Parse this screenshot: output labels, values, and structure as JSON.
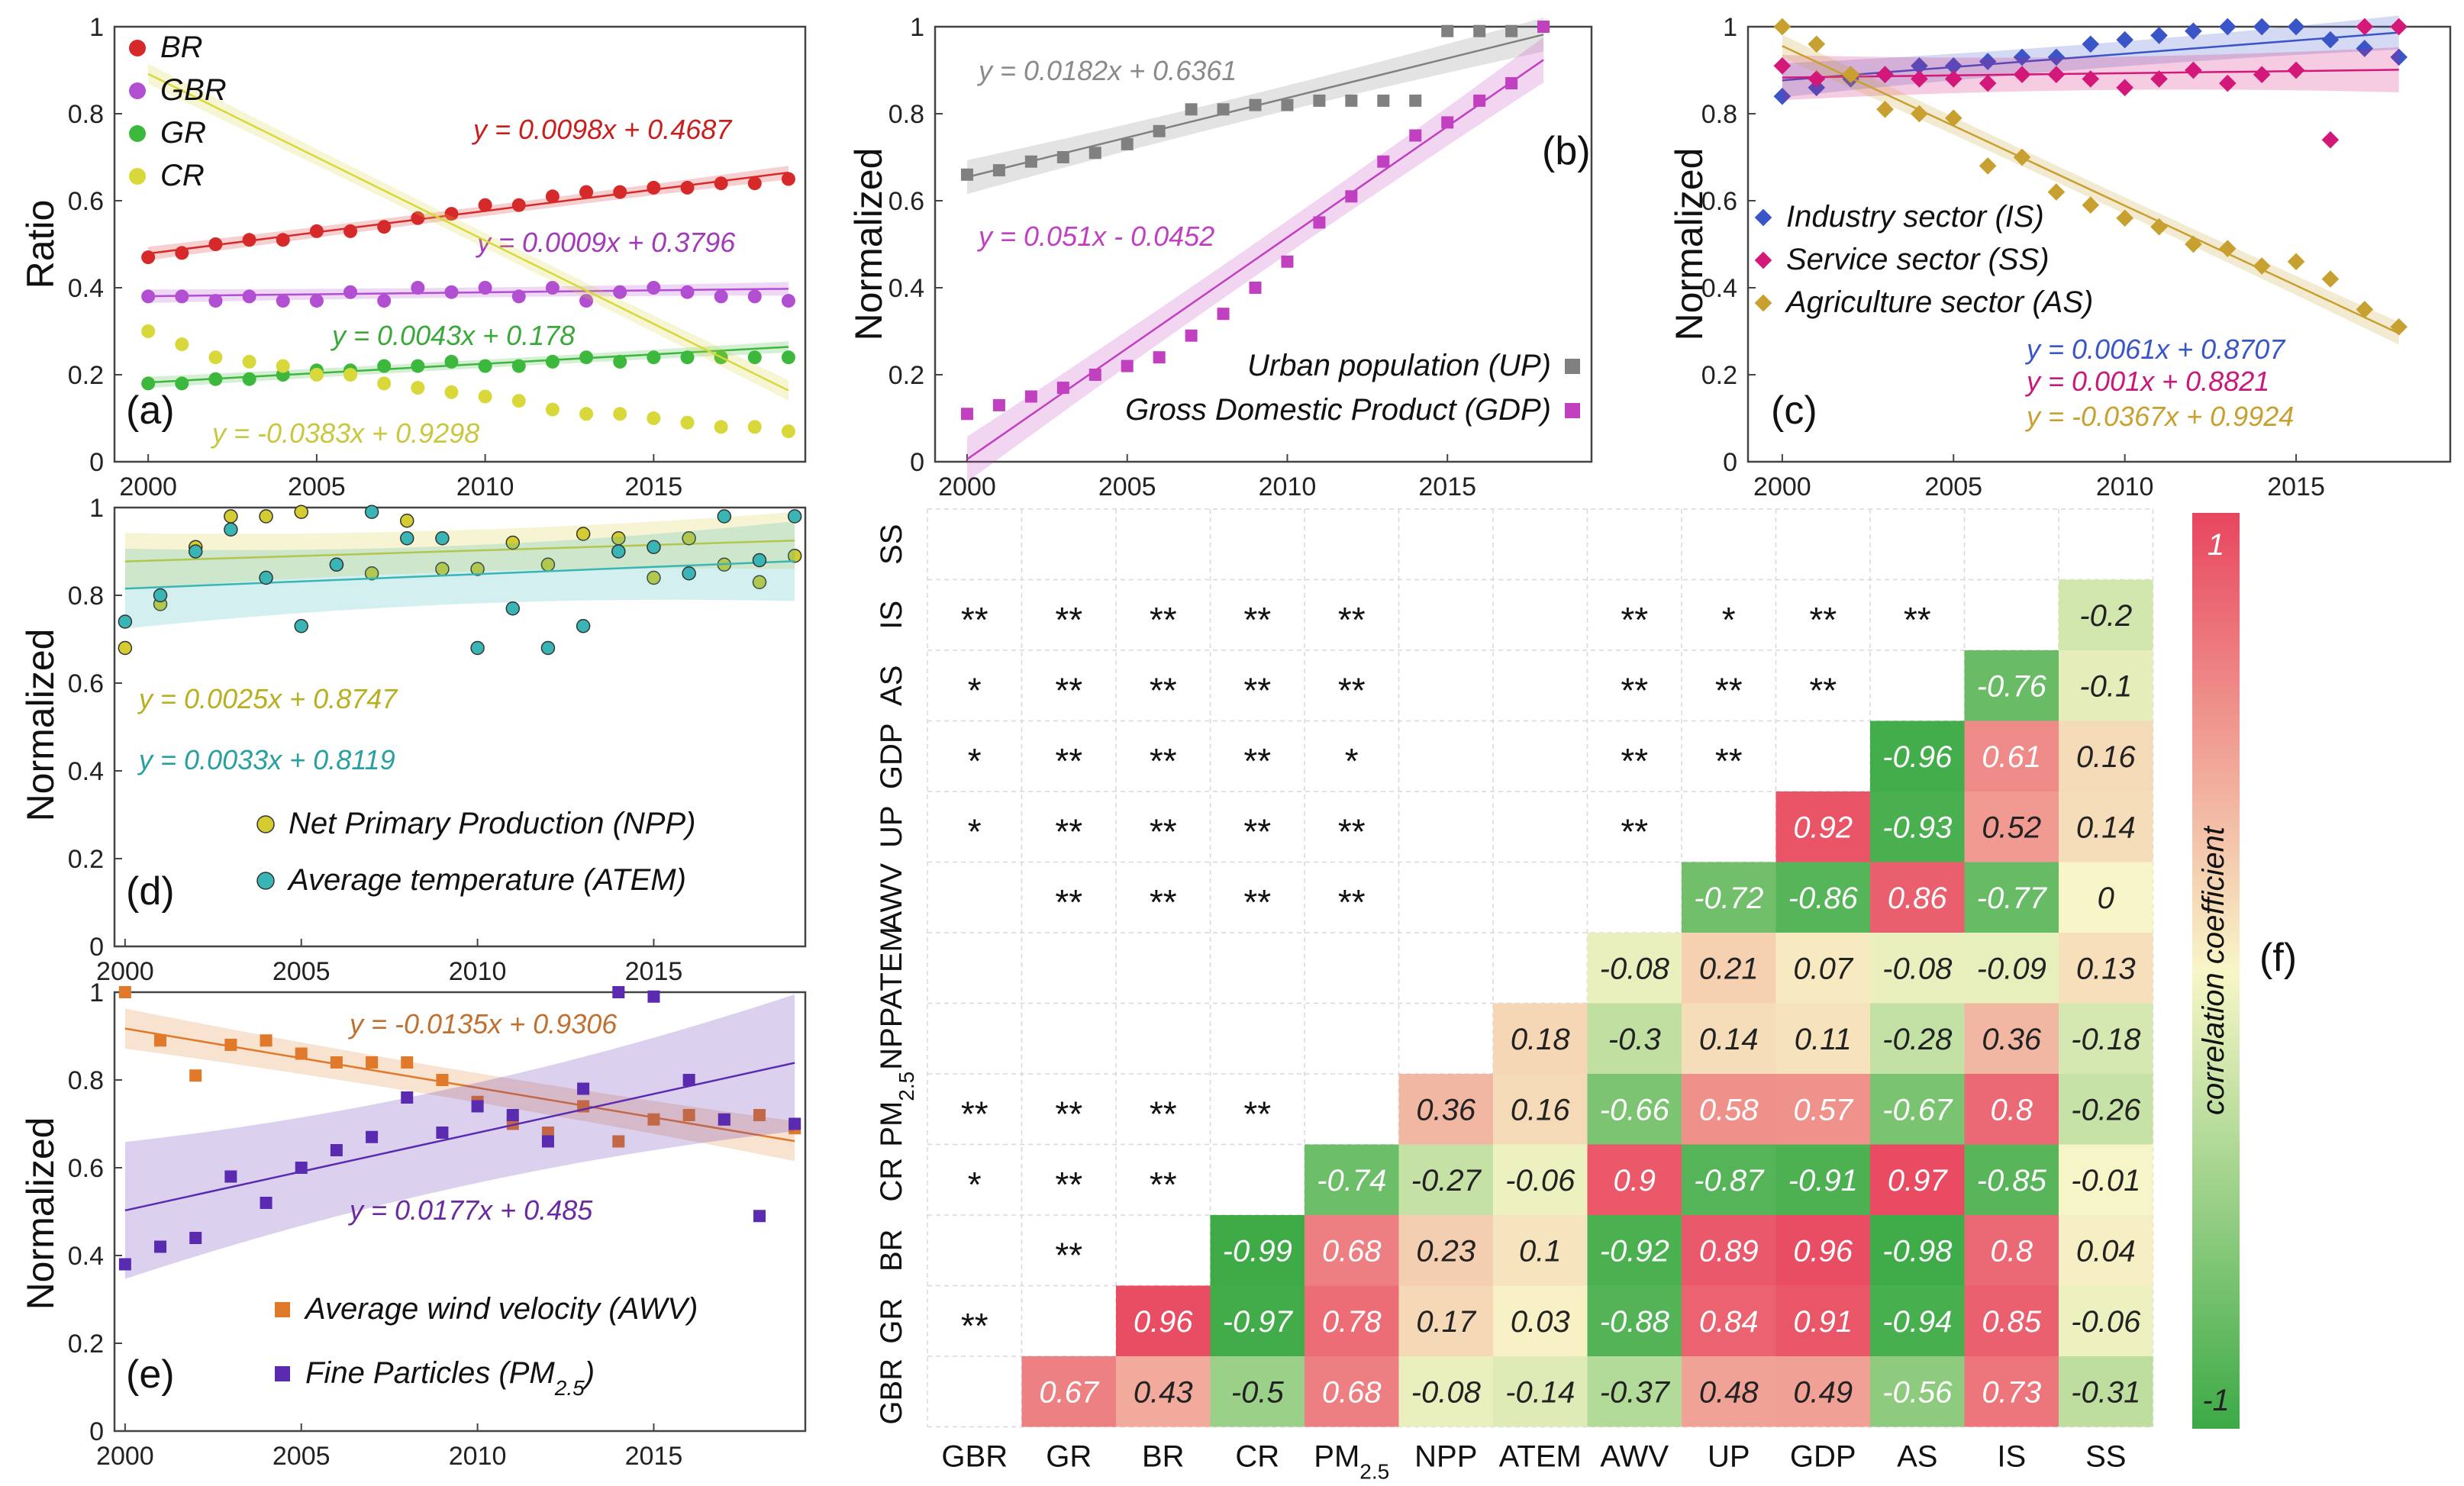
{
  "chart_data": [
    {
      "id": "a",
      "panel_label": "(a)",
      "type": "scatter",
      "title": "",
      "xlabel": "",
      "ylabel": "Ratio",
      "xlim": [
        1999,
        2019.5
      ],
      "ylim": [
        0,
        1
      ],
      "xticks": [
        "2000",
        "2005",
        "2010",
        "2015"
      ],
      "yticks": [
        "0",
        "0.2",
        "0.4",
        "0.6",
        "0.8",
        "1"
      ],
      "legend_position": "top-left",
      "x": [
        2000,
        2001,
        2002,
        2003,
        2004,
        2005,
        2006,
        2007,
        2008,
        2009,
        2010,
        2011,
        2012,
        2013,
        2014,
        2015,
        2016,
        2017,
        2018,
        2019
      ],
      "series": [
        {
          "name": "BR",
          "color": "#d62a2a",
          "values": [
            0.47,
            0.48,
            0.5,
            0.51,
            0.51,
            0.53,
            0.53,
            0.54,
            0.56,
            0.57,
            0.59,
            0.59,
            0.61,
            0.62,
            0.62,
            0.63,
            0.63,
            0.64,
            0.64,
            0.65
          ],
          "fit": {
            "slope": 0.0098,
            "intercept": 0.4687,
            "label": "y = 0.0098x + 0.4687"
          }
        },
        {
          "name": "GBR",
          "color": "#b14ed1",
          "values": [
            0.38,
            0.38,
            0.37,
            0.38,
            0.37,
            0.37,
            0.39,
            0.37,
            0.4,
            0.39,
            0.4,
            0.38,
            0.4,
            0.37,
            0.39,
            0.4,
            0.39,
            0.38,
            0.38,
            0.37
          ],
          "fit": {
            "slope": 0.0009,
            "intercept": 0.3796,
            "label": "y = 0.0009x + 0.3796"
          }
        },
        {
          "name": "GR",
          "color": "#3cb83c",
          "values": [
            0.18,
            0.18,
            0.19,
            0.19,
            0.2,
            0.21,
            0.21,
            0.22,
            0.22,
            0.23,
            0.22,
            0.22,
            0.23,
            0.24,
            0.23,
            0.24,
            0.24,
            0.24,
            0.24,
            0.24
          ],
          "fit": {
            "slope": 0.0043,
            "intercept": 0.178,
            "label": "y = 0.0043x + 0.178"
          }
        },
        {
          "name": "CR",
          "color": "#d8d83a",
          "values": [
            0.3,
            0.27,
            0.24,
            0.23,
            0.22,
            0.2,
            0.2,
            0.18,
            0.17,
            0.16,
            0.15,
            0.14,
            0.12,
            0.11,
            0.11,
            0.1,
            0.09,
            0.08,
            0.08,
            0.07
          ],
          "fit": {
            "slope": -0.0383,
            "intercept": 0.9298,
            "label": "y = -0.0383x + 0.9298"
          }
        }
      ]
    },
    {
      "id": "b",
      "panel_label": "(b)",
      "type": "scatter",
      "title": "",
      "xlabel": "",
      "ylabel": "Normalized",
      "xlim": [
        1999,
        2019.5
      ],
      "ylim": [
        0,
        1
      ],
      "xticks": [
        "2000",
        "2005",
        "2010",
        "2015"
      ],
      "yticks": [
        "0",
        "0.2",
        "0.4",
        "0.6",
        "0.8",
        "1"
      ],
      "legend_position": "bottom-right",
      "x": [
        2000,
        2001,
        2002,
        2003,
        2004,
        2005,
        2006,
        2007,
        2008,
        2009,
        2010,
        2011,
        2012,
        2013,
        2014,
        2015,
        2016,
        2017,
        2018
      ],
      "series": [
        {
          "name": "Urban population (UP)",
          "color": "#808080",
          "values": [
            0.66,
            0.67,
            0.69,
            0.7,
            0.71,
            0.73,
            0.76,
            0.81,
            0.81,
            0.82,
            0.82,
            0.83,
            0.83,
            0.83,
            0.83,
            0.99,
            0.99,
            0.99,
            1.0
          ],
          "fit": {
            "slope": 0.0182,
            "intercept": 0.6361,
            "label": "y = 0.0182x + 0.6361"
          }
        },
        {
          "name": "Gross Domestic Product (GDP)",
          "color": "#c040c0",
          "values": [
            0.11,
            0.13,
            0.15,
            0.17,
            0.2,
            0.22,
            0.24,
            0.29,
            0.34,
            0.4,
            0.46,
            0.55,
            0.61,
            0.69,
            0.75,
            0.78,
            0.83,
            0.87,
            1.0
          ],
          "fit": {
            "slope": 0.051,
            "intercept": -0.0452,
            "label": "y = 0.051x - 0.0452"
          }
        }
      ]
    },
    {
      "id": "c",
      "panel_label": "(c)",
      "type": "scatter",
      "title": "",
      "xlabel": "",
      "ylabel": "Normalized",
      "xlim": [
        1999,
        2019.5
      ],
      "ylim": [
        0,
        1
      ],
      "xticks": [
        "2000",
        "2005",
        "2010",
        "2015"
      ],
      "yticks": [
        "0",
        "0.2",
        "0.4",
        "0.6",
        "0.8",
        "1"
      ],
      "legend_position": "center-left",
      "x": [
        2000,
        2001,
        2002,
        2003,
        2004,
        2005,
        2006,
        2007,
        2008,
        2009,
        2010,
        2011,
        2012,
        2013,
        2014,
        2015,
        2016,
        2017,
        2018
      ],
      "series": [
        {
          "name": "Industry sector (IS)",
          "color": "#3a55c8",
          "values": [
            0.84,
            0.86,
            0.88,
            0.89,
            0.91,
            0.91,
            0.92,
            0.93,
            0.93,
            0.96,
            0.97,
            0.98,
            0.99,
            1.0,
            1.0,
            1.0,
            0.97,
            0.95,
            0.93
          ],
          "fit": {
            "slope": 0.0061,
            "intercept": 0.8707,
            "label": "y = 0.0061x + 0.8707"
          }
        },
        {
          "name": "Service sector (SS)",
          "color": "#d4187a",
          "values": [
            0.91,
            0.88,
            0.89,
            0.89,
            0.88,
            0.88,
            0.87,
            0.89,
            0.89,
            0.88,
            0.86,
            0.88,
            0.9,
            0.87,
            0.89,
            0.9,
            0.74,
            1.0,
            1.0
          ],
          "fit": {
            "slope": 0.001,
            "intercept": 0.8821,
            "label": "y = 0.001x + 0.8821"
          }
        },
        {
          "name": "Agriculture sector (AS)",
          "color": "#c8a030",
          "values": [
            1.0,
            0.96,
            0.89,
            0.81,
            0.8,
            0.79,
            0.68,
            0.7,
            0.62,
            0.59,
            0.56,
            0.54,
            0.5,
            0.49,
            0.45,
            0.46,
            0.42,
            0.35,
            0.31
          ],
          "fit": {
            "slope": -0.0367,
            "intercept": 0.9924,
            "label": "y = -0.0367x + 0.9924"
          }
        }
      ]
    },
    {
      "id": "d",
      "panel_label": "(d)",
      "type": "scatter",
      "title": "",
      "xlabel": "",
      "ylabel": "Normalized",
      "xlim": [
        1999.7,
        2019.3
      ],
      "ylim": [
        0,
        1
      ],
      "xticks": [
        "2000",
        "2005",
        "2010",
        "2015"
      ],
      "yticks": [
        "0",
        "0.2",
        "0.4",
        "0.6",
        "0.8",
        "1"
      ],
      "legend_position": "bottom-right",
      "x": [
        2000,
        2001,
        2002,
        2003,
        2004,
        2005,
        2006,
        2007,
        2008,
        2009,
        2010,
        2011,
        2012,
        2013,
        2014,
        2015,
        2016,
        2017,
        2018,
        2019
      ],
      "series": [
        {
          "name": "Net Primary Production (NPP)",
          "color": "#d4cc30",
          "values": [
            0.68,
            0.78,
            0.91,
            0.98,
            0.98,
            0.99,
            0.87,
            0.85,
            0.97,
            0.86,
            0.86,
            0.92,
            0.87,
            0.94,
            0.93,
            0.84,
            0.93,
            0.87,
            0.83,
            0.89
          ],
          "fit": {
            "slope": 0.0025,
            "intercept": 0.8747,
            "label": "y = 0.0025x + 0.8747"
          }
        },
        {
          "name": "Average temperature (ATEM)",
          "color": "#3ab5b5",
          "values": [
            0.74,
            0.8,
            0.9,
            0.95,
            0.84,
            0.73,
            0.87,
            0.99,
            0.93,
            0.93,
            0.68,
            0.77,
            0.68,
            0.73,
            0.9,
            0.91,
            0.85,
            0.98,
            0.88,
            0.98
          ],
          "fit": {
            "slope": 0.0033,
            "intercept": 0.8119,
            "label": "y = 0.0033x + 0.8119"
          }
        }
      ]
    },
    {
      "id": "e",
      "panel_label": "(e)",
      "type": "scatter",
      "title": "",
      "xlabel": "",
      "ylabel": "Normalized",
      "xlim": [
        1999.7,
        2019.3
      ],
      "ylim": [
        0,
        1
      ],
      "xticks": [
        "2000",
        "2005",
        "2010",
        "2015"
      ],
      "yticks": [
        "0",
        "0.2",
        "0.4",
        "0.6",
        "0.8",
        "1"
      ],
      "legend_position": "bottom-right",
      "x": [
        2000,
        2001,
        2002,
        2003,
        2004,
        2005,
        2006,
        2007,
        2008,
        2009,
        2010,
        2011,
        2012,
        2013,
        2014,
        2015,
        2016,
        2017,
        2018,
        2019
      ],
      "series": [
        {
          "name": "Average wind velocity (AWV)",
          "color": "#e07a2a",
          "values": [
            1.0,
            0.89,
            0.81,
            0.88,
            0.89,
            0.86,
            0.84,
            0.84,
            0.84,
            0.8,
            0.75,
            0.7,
            0.68,
            0.74,
            0.66,
            0.71,
            0.72,
            0.71,
            0.72,
            0.69
          ],
          "fit": {
            "slope": -0.0135,
            "intercept": 0.9306,
            "label": "y = -0.0135x + 0.9306"
          }
        },
        {
          "name": "Fine Particles (PM2.5)",
          "color": "#5a2ab0",
          "values": [
            0.38,
            0.42,
            0.44,
            0.58,
            0.52,
            0.6,
            0.64,
            0.67,
            0.76,
            0.68,
            0.74,
            0.72,
            0.66,
            0.78,
            1.0,
            0.99,
            0.8,
            0.71,
            0.49,
            0.7
          ],
          "fit": {
            "slope": 0.0177,
            "intercept": 0.485,
            "label": "y = 0.0177x + 0.485"
          }
        }
      ]
    },
    {
      "id": "f",
      "panel_label": "(f)",
      "type": "heatmap",
      "title": "",
      "colorbar": {
        "label": "correlation coefficient",
        "max_label": "1",
        "min_label": "-1",
        "range": [
          -1,
          1
        ]
      },
      "x_labels": [
        "GBR",
        "GR",
        "BR",
        "CR",
        "PM2.5",
        "NPP",
        "ATEM",
        "AWV",
        "UP",
        "GDP",
        "AS",
        "IS",
        "SS"
      ],
      "y_labels": [
        "SS",
        "IS",
        "AS",
        "GDP",
        "UP",
        "AWV",
        "ATEM",
        "NPP",
        "PM2.5",
        "CR",
        "BR",
        "GR",
        "GBR"
      ],
      "values": [
        [
          null,
          null,
          null,
          null,
          null,
          null,
          null,
          null,
          null,
          null,
          null,
          null,
          null
        ],
        [
          null,
          null,
          null,
          null,
          null,
          null,
          null,
          null,
          null,
          null,
          null,
          null,
          -0.2
        ],
        [
          null,
          null,
          null,
          null,
          null,
          null,
          null,
          null,
          null,
          null,
          null,
          -0.76,
          -0.1
        ],
        [
          null,
          null,
          null,
          null,
          null,
          null,
          null,
          null,
          null,
          null,
          -0.96,
          0.61,
          0.16
        ],
        [
          null,
          null,
          null,
          null,
          null,
          null,
          null,
          null,
          null,
          0.92,
          -0.93,
          0.52,
          0.14
        ],
        [
          null,
          null,
          null,
          null,
          null,
          null,
          null,
          null,
          -0.72,
          -0.86,
          0.86,
          -0.77,
          0
        ],
        [
          null,
          null,
          null,
          null,
          null,
          null,
          null,
          -0.08,
          0.21,
          0.07,
          -0.08,
          -0.09,
          0.13
        ],
        [
          null,
          null,
          null,
          null,
          null,
          null,
          0.18,
          -0.3,
          0.14,
          0.11,
          -0.28,
          0.36,
          -0.18
        ],
        [
          null,
          null,
          null,
          null,
          null,
          0.36,
          0.16,
          -0.66,
          0.58,
          0.57,
          -0.67,
          0.8,
          -0.26
        ],
        [
          null,
          null,
          null,
          null,
          -0.74,
          -0.27,
          -0.06,
          0.9,
          -0.87,
          -0.91,
          0.97,
          -0.85,
          -0.01
        ],
        [
          null,
          null,
          null,
          -0.99,
          0.68,
          0.23,
          0.1,
          -0.92,
          0.89,
          0.96,
          -0.98,
          0.8,
          0.04
        ],
        [
          null,
          null,
          0.96,
          -0.97,
          0.78,
          0.17,
          0.03,
          -0.88,
          0.84,
          0.91,
          -0.94,
          0.85,
          -0.06
        ],
        [
          null,
          0.67,
          0.43,
          -0.5,
          0.68,
          -0.08,
          -0.14,
          -0.37,
          0.48,
          0.49,
          -0.56,
          0.73,
          -0.31
        ]
      ],
      "significance": [
        [
          "",
          "",
          "",
          "",
          "",
          "",
          "",
          "",
          "",
          "",
          "",
          "",
          ""
        ],
        [
          "**",
          "**",
          "**",
          "**",
          "**",
          "",
          "",
          "**",
          "*",
          "**",
          "**",
          "",
          ""
        ],
        [
          "*",
          "**",
          "**",
          "**",
          "**",
          "",
          "",
          "**",
          "**",
          "**",
          "",
          "",
          ""
        ],
        [
          "*",
          "**",
          "**",
          "**",
          "*",
          "",
          "",
          "**",
          "**",
          "",
          "",
          "",
          ""
        ],
        [
          "*",
          "**",
          "**",
          "**",
          "**",
          "",
          "",
          "**",
          "",
          "",
          "",
          "",
          ""
        ],
        [
          "",
          "**",
          "**",
          "**",
          "**",
          "",
          "",
          "",
          "",
          "",
          "",
          "",
          ""
        ],
        [
          "",
          "",
          "",
          "",
          "",
          "",
          "",
          "",
          "",
          "",
          "",
          "",
          ""
        ],
        [
          "",
          "",
          "",
          "",
          "",
          "",
          "",
          "",
          "",
          "",
          "",
          "",
          ""
        ],
        [
          "**",
          "**",
          "**",
          "**",
          "",
          "",
          "",
          "",
          "",
          "",
          "",
          "",
          ""
        ],
        [
          "*",
          "**",
          "**",
          "",
          "",
          "",
          "",
          "",
          "",
          "",
          "",
          "",
          ""
        ],
        [
          "",
          "**",
          "",
          "",
          "",
          "",
          "",
          "",
          "",
          "",
          "",
          "",
          ""
        ],
        [
          "**",
          "",
          "",
          "",
          "",
          "",
          "",
          "",
          "",
          "",
          "",
          "",
          ""
        ],
        [
          "",
          "",
          "",
          "",
          "",
          "",
          "",
          "",
          "",
          "",
          "",
          "",
          ""
        ]
      ]
    }
  ]
}
